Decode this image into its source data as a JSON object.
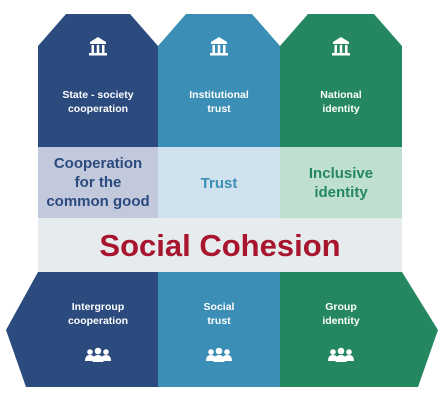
{
  "colors": {
    "col1": "#2b4a7e",
    "col2": "#3b8eb5",
    "col3": "#24875f",
    "mid1": "#c3c9dd",
    "mid2": "#cfe2ee",
    "mid3": "#bfe0d1",
    "band": "#e6ecee",
    "title": "#a8152e",
    "midtext1": "#2b4a7e",
    "midtext2": "#3b8eb5",
    "midtext3": "#24875f"
  },
  "columns": [
    {
      "top_icon": "institution-icon",
      "header": [
        "State - society",
        "cooperation"
      ],
      "middle": [
        "Cooperation",
        "for the",
        "common good"
      ],
      "bottom": [
        "Intergroup",
        "cooperation"
      ],
      "bottom_icon": "group-icon"
    },
    {
      "top_icon": "institution-icon",
      "header": [
        "Institutional",
        "trust"
      ],
      "middle": [
        "Trust"
      ],
      "bottom": [
        "Social",
        "trust"
      ],
      "bottom_icon": "group-icon"
    },
    {
      "top_icon": "institution-icon",
      "header": [
        "National",
        "identity"
      ],
      "middle": [
        "Inclusive",
        "identity"
      ],
      "bottom": [
        "Group",
        "identity"
      ],
      "bottom_icon": "group-icon"
    }
  ],
  "title": "Social Cohesion"
}
